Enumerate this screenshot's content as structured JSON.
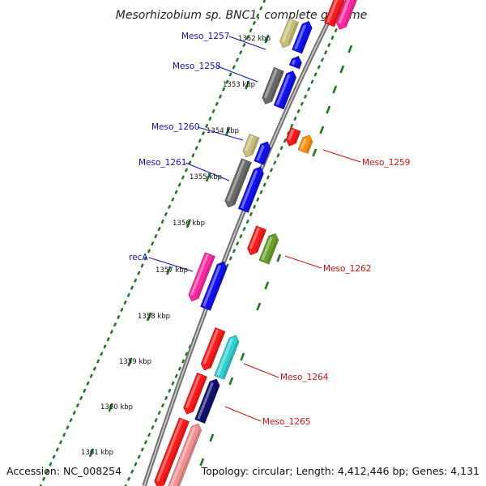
{
  "title": "Mesorhizobium sp. BNC1, complete genome",
  "accession": "Accession: NC_008254",
  "topology": "Topology: circular; Length: 4,412,446 bp; Genes: 4,131",
  "colors": {
    "backbone": "#8a8a8a",
    "tick": "#1f7a1f",
    "label_left": "#1010c0",
    "label_right": "#d01010"
  },
  "ticks": [
    {
      "label": "1352 kbp"
    },
    {
      "label": "1353 kbp"
    },
    {
      "label": "1354 kbp"
    },
    {
      "label": "1355 kbp"
    },
    {
      "label": "1356 kbp"
    },
    {
      "label": "1357 kbp"
    },
    {
      "label": "1358 kbp"
    },
    {
      "label": "1359 kbp"
    },
    {
      "label": "1360 kbp"
    },
    {
      "label": "1361 kbp"
    }
  ],
  "gene_labels": [
    {
      "name": "Meso_1257",
      "side": "left"
    },
    {
      "name": "Meso_1258",
      "side": "left"
    },
    {
      "name": "Meso_1260",
      "side": "left"
    },
    {
      "name": "Meso_1261",
      "side": "left"
    },
    {
      "name": "recA",
      "side": "left"
    },
    {
      "name": "Meso_1259",
      "side": "right"
    },
    {
      "name": "Meso_1262",
      "side": "right"
    },
    {
      "name": "Meso_1264",
      "side": "right"
    },
    {
      "name": "Meso_1265",
      "side": "right"
    }
  ]
}
